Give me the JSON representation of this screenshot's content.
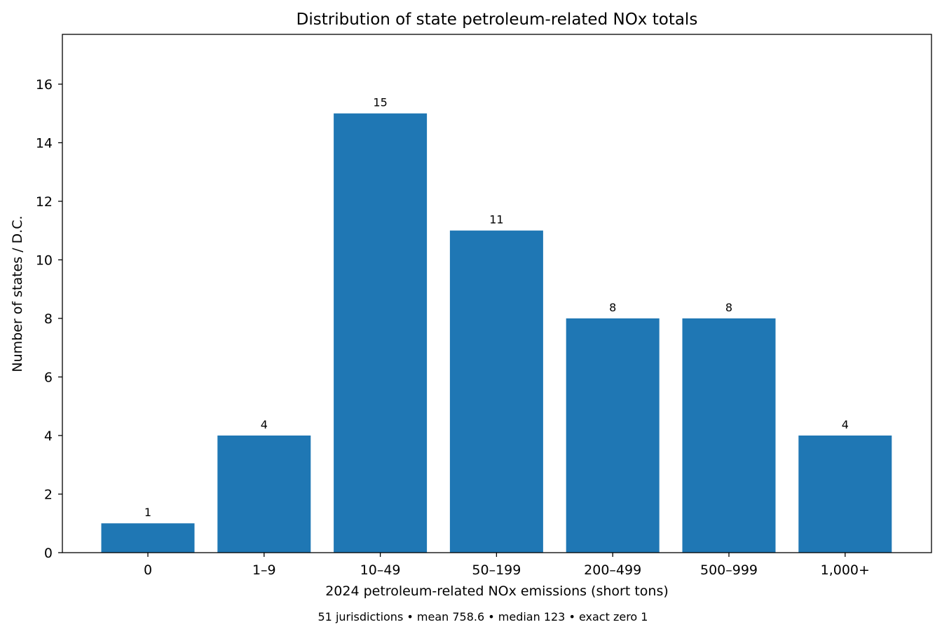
{
  "chart_data": {
    "type": "bar",
    "title": "Distribution of state petroleum-related NOx totals",
    "xlabel": "2024 petroleum-related NOx emissions (short tons)",
    "ylabel": "Number of states / D.C.",
    "caption": "51 jurisdictions • mean 758.6 • median 123 • exact zero 1",
    "categories": [
      "0",
      "1–9",
      "10–49",
      "50–199",
      "200–499",
      "500–999",
      "1,000+"
    ],
    "values": [
      1,
      4,
      15,
      11,
      8,
      8,
      4
    ],
    "data_labels": [
      "1",
      "4",
      "15",
      "11",
      "8",
      "8",
      "4"
    ],
    "yticks": [
      0,
      2,
      4,
      6,
      8,
      10,
      12,
      14,
      16
    ],
    "ytick_labels": [
      "0",
      "2",
      "4",
      "6",
      "8",
      "10",
      "12",
      "14",
      "16"
    ],
    "ylim": [
      0,
      17.7
    ],
    "grid": false,
    "legend": "none",
    "colors": {
      "bar": "#1f77b4",
      "axes": "#000000",
      "background": "#ffffff"
    }
  }
}
